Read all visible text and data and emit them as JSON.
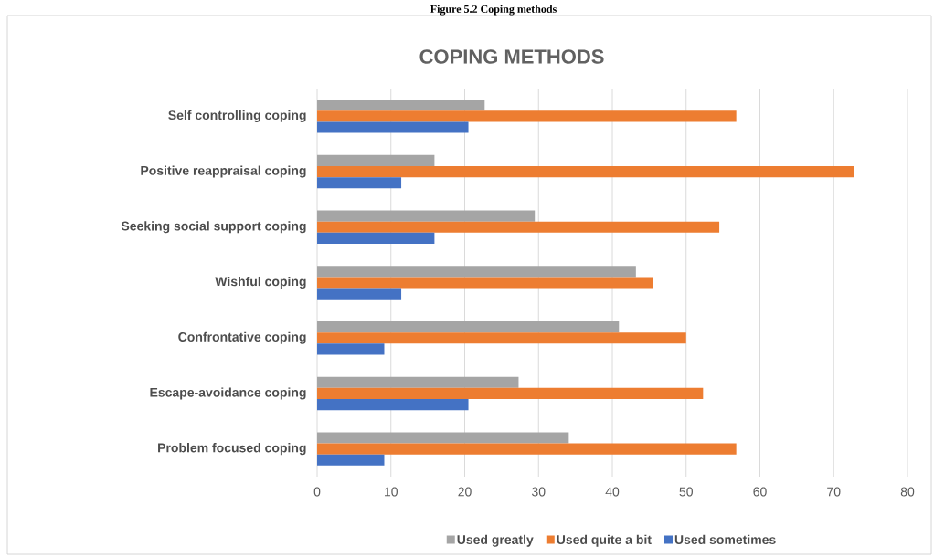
{
  "chart_data": {
    "type": "bar",
    "orientation": "horizontal",
    "title": "COPING METHODS",
    "annotations": [
      "Figure 5.2 Coping methods"
    ],
    "categories": [
      "Self controlling coping",
      "Positive reappraisal coping",
      "Seeking social support coping",
      "Wishful coping",
      "Confrontative coping",
      "Escape-avoidance coping",
      "Problem focused coping"
    ],
    "series": [
      {
        "name": "Used greatly",
        "color": "#a5a5a5",
        "values": [
          22.7,
          15.9,
          29.5,
          43.2,
          40.9,
          27.3,
          34.1
        ]
      },
      {
        "name": "Used quite a bit",
        "color": "#ed7d31",
        "values": [
          56.8,
          72.7,
          54.5,
          45.5,
          50,
          52.3,
          56.8
        ]
      },
      {
        "name": "Used sometimes",
        "color": "#4472c4",
        "values": [
          20.5,
          11.4,
          15.9,
          11.4,
          9.1,
          20.5,
          9.1
        ]
      }
    ],
    "xlim": [
      0,
      80
    ],
    "xticks": [
      0,
      10,
      20,
      30,
      40,
      50,
      60,
      70,
      80
    ],
    "grid": "x",
    "legend": "bottom"
  }
}
